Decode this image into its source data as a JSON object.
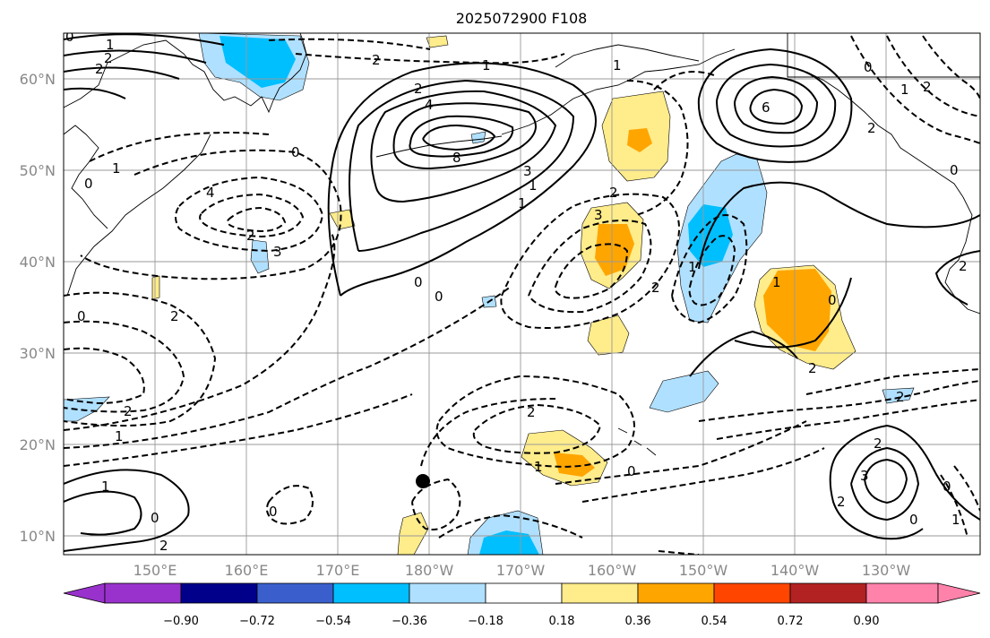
{
  "title": "2025072900 F108",
  "colors": {
    "neg_090": "#9932cc",
    "neg_072": "#00008b",
    "neg_054": "#3a5fcd",
    "neg_036": "#00bfff",
    "neg_018": "#b0e0ff",
    "neutral": "#ffffff",
    "pos_018": "#ffec8b",
    "pos_036": "#ffa500",
    "pos_054": "#ff4500",
    "pos_072": "#b22222",
    "pos_090": "#ff82ab"
  },
  "longitude_labels": [
    "150°E",
    "160°E",
    "170°E",
    "180°W",
    "170°W",
    "160°W",
    "150°W",
    "140°W",
    "130°W"
  ],
  "latitude_labels": [
    "60°N",
    "50°N",
    "40°N",
    "30°N",
    "20°N",
    "10°N"
  ],
  "colorbar": {
    "ticks": [
      "−0.90",
      "−0.72",
      "−0.54",
      "−0.36",
      "−0.18",
      "0.18",
      "0.36",
      "0.54",
      "0.72",
      "0.90"
    ],
    "extend": "both"
  },
  "contour_labels": [
    "1",
    "2",
    "2",
    "2",
    "1",
    "0",
    "4",
    "2",
    "6",
    "0",
    "1",
    "2",
    "0",
    "2",
    "1",
    "2",
    "3",
    "2",
    "4",
    "8",
    "1",
    "0",
    "0",
    "0",
    "3",
    "3",
    "1",
    "1",
    "2",
    "2",
    "0",
    "1",
    "2",
    "2",
    "2",
    "1",
    "0",
    "0",
    "1",
    "2",
    "1",
    "0",
    "0",
    "1",
    "0",
    "2",
    "2",
    "2",
    "3",
    "0",
    "0",
    "1",
    "2"
  ],
  "marker": "typhoon-position-dot"
}
